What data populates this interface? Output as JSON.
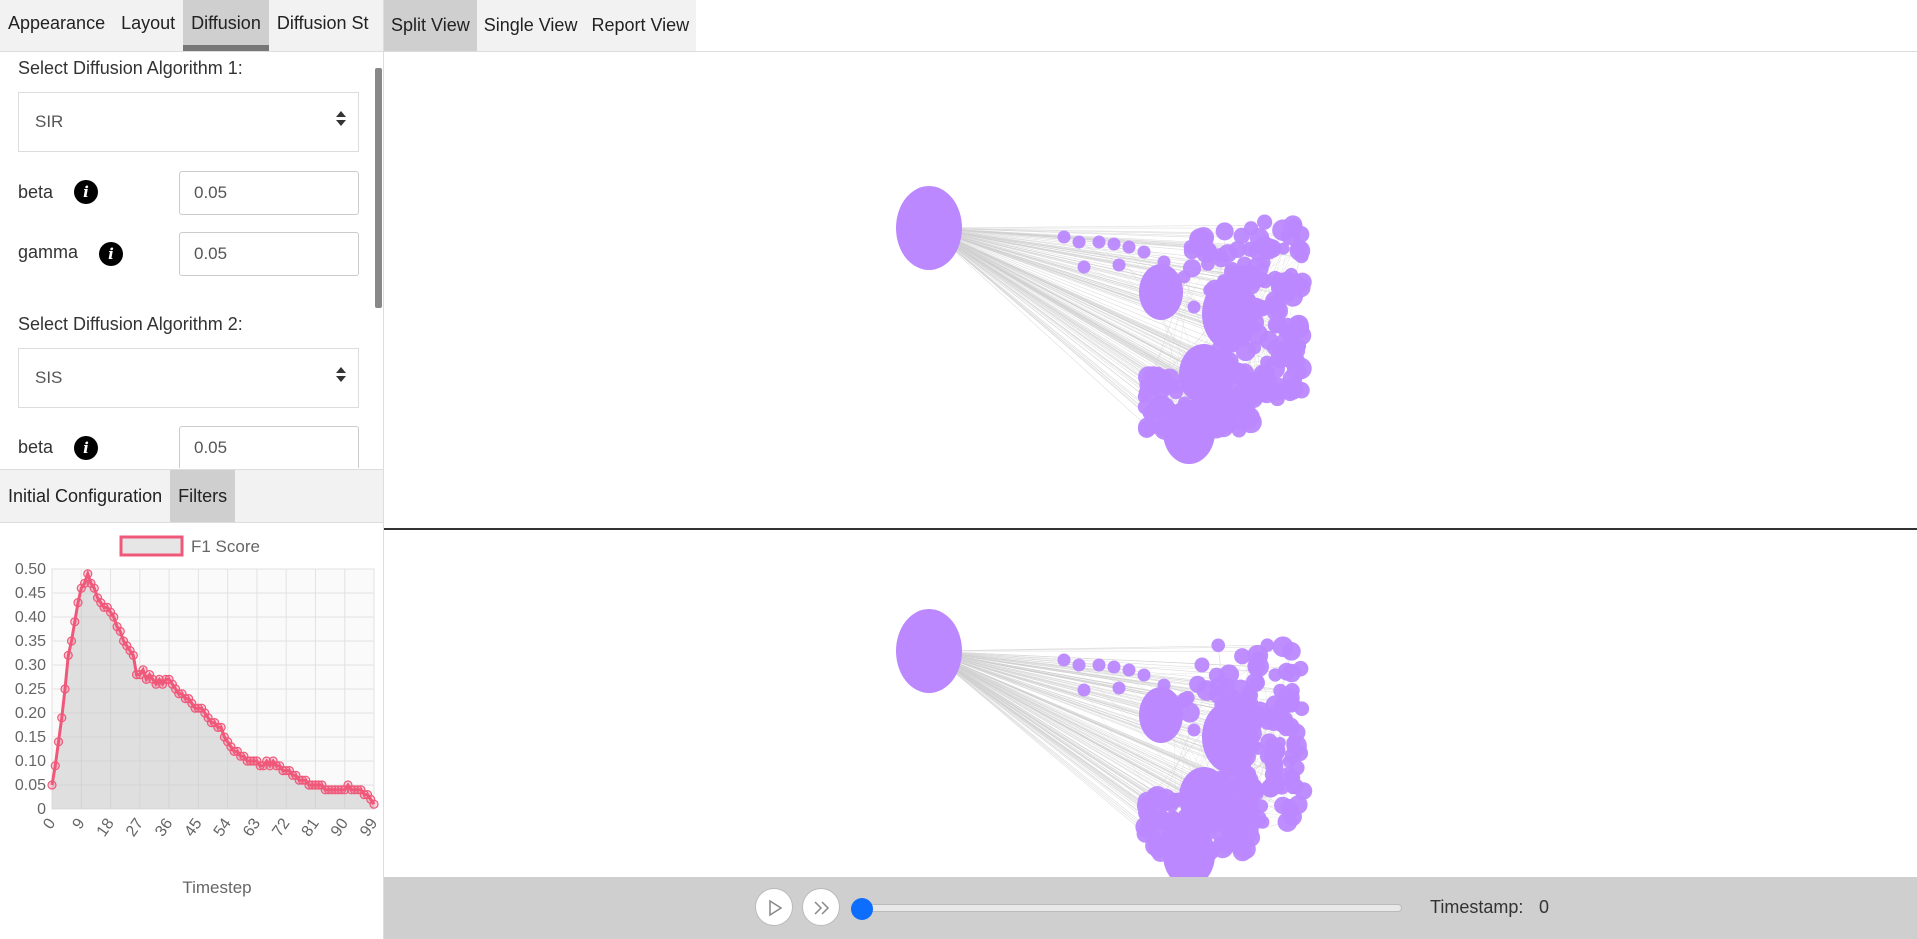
{
  "left_tabs": [
    "Appearance",
    "Layout",
    "Diffusion",
    "Diffusion St"
  ],
  "active_left_tab": "Diffusion",
  "diffusion": {
    "algo1_label": "Select Diffusion Algorithm 1:",
    "algo1_value": "SIR",
    "algo1_params": [
      {
        "label": "beta",
        "value": "0.05"
      },
      {
        "label": "gamma",
        "value": "0.05"
      }
    ],
    "algo2_label": "Select Diffusion Algorithm 2:",
    "algo2_value": "SIS",
    "algo2_params": [
      {
        "label": "beta",
        "value": "0.05"
      }
    ]
  },
  "bottom_tabs": [
    "Initial Configuration",
    "Filters"
  ],
  "active_bottom_tab": "Filters",
  "view_tabs": [
    "Split View",
    "Single View",
    "Report View"
  ],
  "active_view_tab": "Split View",
  "controls": {
    "timestamp_label": "Timestamp:",
    "timestamp_value": "0",
    "slider_progress": 0
  },
  "colors": {
    "node": "#bb88ff",
    "series": "#f0587a",
    "slider": "#0d6efd"
  },
  "chart_data": {
    "type": "area",
    "legend": [
      "F1 Score"
    ],
    "xlabel": "Timestep",
    "ylabel": "",
    "ylim": [
      0,
      0.5
    ],
    "yticks": [
      "0",
      "0.05",
      "0.10",
      "0.15",
      "0.20",
      "0.25",
      "0.30",
      "0.35",
      "0.40",
      "0.45",
      "0.50"
    ],
    "xticks": [
      "0",
      "9",
      "18",
      "27",
      "36",
      "45",
      "54",
      "63",
      "72",
      "81",
      "90",
      "99"
    ],
    "series": [
      {
        "name": "F1 Score",
        "x": [
          0,
          1,
          2,
          3,
          4,
          5,
          6,
          7,
          8,
          9,
          10,
          11,
          12,
          13,
          14,
          15,
          16,
          17,
          18,
          19,
          20,
          21,
          22,
          23,
          24,
          25,
          26,
          27,
          28,
          29,
          30,
          31,
          32,
          33,
          34,
          35,
          36,
          37,
          38,
          39,
          40,
          41,
          42,
          43,
          44,
          45,
          46,
          47,
          48,
          49,
          50,
          51,
          52,
          53,
          54,
          55,
          56,
          57,
          58,
          59,
          60,
          61,
          62,
          63,
          64,
          65,
          66,
          67,
          68,
          69,
          70,
          71,
          72,
          73,
          74,
          75,
          76,
          77,
          78,
          79,
          80,
          81,
          82,
          83,
          84,
          85,
          86,
          87,
          88,
          89,
          90,
          91,
          92,
          93,
          94,
          95,
          96,
          97,
          98,
          99
        ],
        "y": [
          0.05,
          0.09,
          0.14,
          0.19,
          0.25,
          0.32,
          0.35,
          0.39,
          0.43,
          0.46,
          0.47,
          0.49,
          0.47,
          0.46,
          0.44,
          0.43,
          0.42,
          0.42,
          0.41,
          0.4,
          0.38,
          0.37,
          0.35,
          0.34,
          0.33,
          0.32,
          0.28,
          0.28,
          0.29,
          0.27,
          0.28,
          0.27,
          0.26,
          0.27,
          0.26,
          0.27,
          0.27,
          0.26,
          0.25,
          0.24,
          0.24,
          0.23,
          0.23,
          0.22,
          0.21,
          0.21,
          0.21,
          0.2,
          0.19,
          0.18,
          0.18,
          0.17,
          0.17,
          0.15,
          0.14,
          0.13,
          0.12,
          0.12,
          0.11,
          0.11,
          0.1,
          0.1,
          0.1,
          0.1,
          0.09,
          0.09,
          0.1,
          0.09,
          0.1,
          0.09,
          0.09,
          0.08,
          0.08,
          0.08,
          0.07,
          0.07,
          0.06,
          0.06,
          0.06,
          0.05,
          0.05,
          0.05,
          0.05,
          0.05,
          0.04,
          0.04,
          0.04,
          0.04,
          0.04,
          0.04,
          0.04,
          0.05,
          0.04,
          0.04,
          0.04,
          0.04,
          0.03,
          0.03,
          0.02,
          0.01
        ]
      }
    ]
  }
}
